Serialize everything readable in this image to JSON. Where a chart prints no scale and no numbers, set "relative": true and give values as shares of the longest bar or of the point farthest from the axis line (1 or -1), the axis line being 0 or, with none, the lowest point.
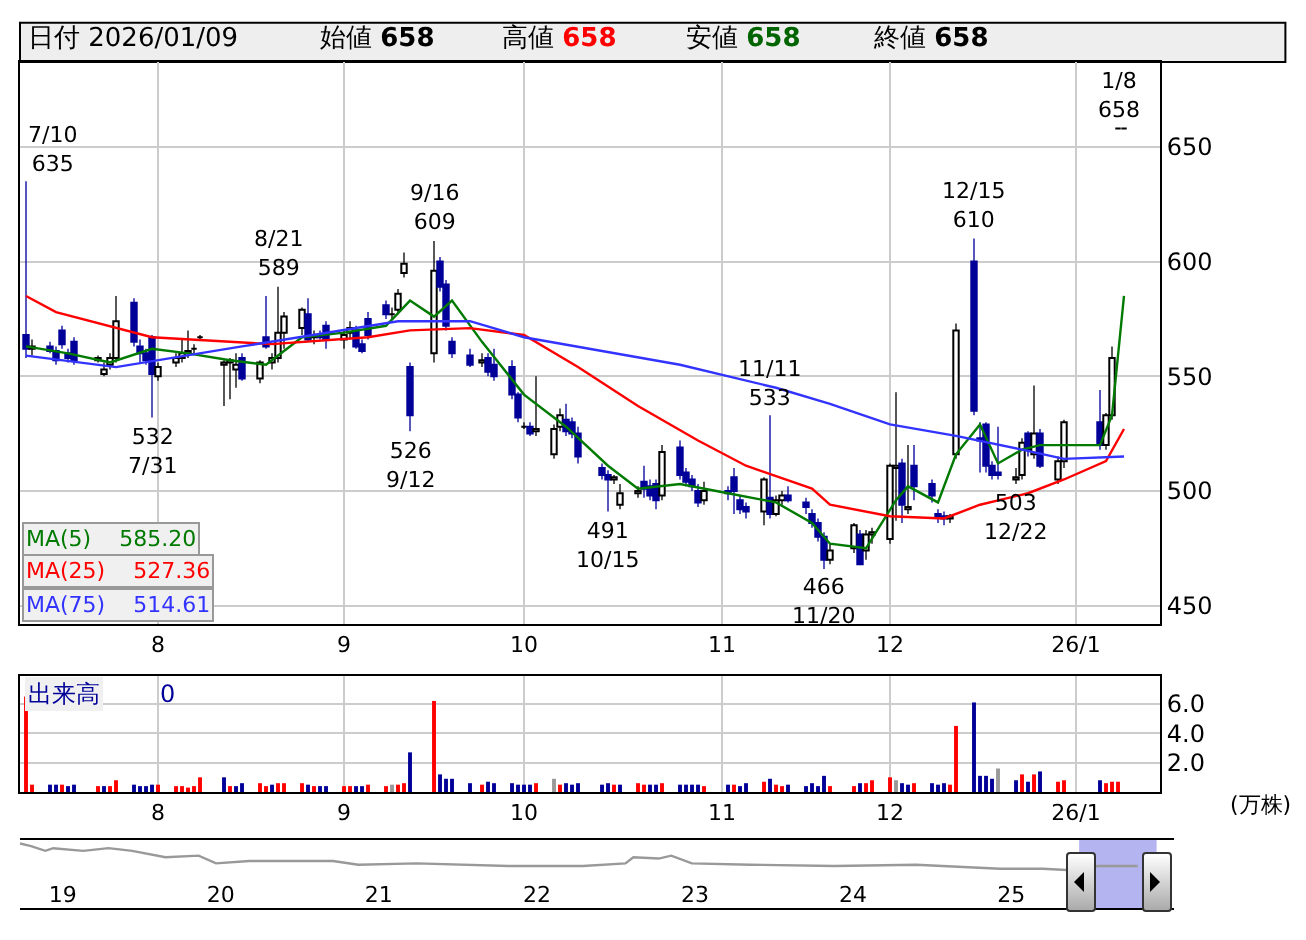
{
  "chart_data": [
    {
      "type": "candlestick",
      "xlim": [
        "2025-07-09",
        "2026-01-15"
      ],
      "ylim": [
        442,
        687
      ],
      "yticks": [
        450,
        500,
        550,
        600,
        650
      ],
      "xticks": [
        {
          "value": "2025-08-01",
          "label": "8"
        },
        {
          "value": "2025-09-01",
          "label": "9"
        },
        {
          "value": "2025-10-01",
          "label": "10"
        },
        {
          "value": "2025-11-03",
          "label": "11"
        },
        {
          "value": "2025-12-01",
          "label": "12"
        },
        {
          "value": "2026-01-01",
          "label": "26/1"
        }
      ],
      "grid": true,
      "legend": false,
      "x": [
        "2025-07-10",
        "2025-07-11",
        "2025-07-14",
        "2025-07-15",
        "2025-07-16",
        "2025-07-17",
        "2025-07-18",
        "2025-07-22",
        "2025-07-23",
        "2025-07-24",
        "2025-07-25",
        "2025-07-28",
        "2025-07-29",
        "2025-07-30",
        "2025-07-31",
        "2025-08-01",
        "2025-08-04",
        "2025-08-05",
        "2025-08-06",
        "2025-08-07",
        "2025-08-08",
        "2025-08-12",
        "2025-08-13",
        "2025-08-14",
        "2025-08-15",
        "2025-08-18",
        "2025-08-19",
        "2025-08-20",
        "2025-08-21",
        "2025-08-22",
        "2025-08-25",
        "2025-08-26",
        "2025-08-27",
        "2025-08-28",
        "2025-08-29",
        "2025-09-01",
        "2025-09-02",
        "2025-09-03",
        "2025-09-04",
        "2025-09-05",
        "2025-09-08",
        "2025-09-09",
        "2025-09-10",
        "2025-09-11",
        "2025-09-12",
        "2025-09-16",
        "2025-09-17",
        "2025-09-18",
        "2025-09-19",
        "2025-09-22",
        "2025-09-24",
        "2025-09-25",
        "2025-09-26",
        "2025-09-29",
        "2025-09-30",
        "2025-10-01",
        "2025-10-02",
        "2025-10-03",
        "2025-10-06",
        "2025-10-07",
        "2025-10-08",
        "2025-10-09",
        "2025-10-10",
        "2025-10-14",
        "2025-10-15",
        "2025-10-16",
        "2025-10-17",
        "2025-10-20",
        "2025-10-21",
        "2025-10-22",
        "2025-10-23",
        "2025-10-24",
        "2025-10-27",
        "2025-10-28",
        "2025-10-29",
        "2025-10-30",
        "2025-10-31",
        "2025-11-04",
        "2025-11-05",
        "2025-11-06",
        "2025-11-07",
        "2025-11-10",
        "2025-11-11",
        "2025-11-12",
        "2025-11-13",
        "2025-11-14",
        "2025-11-17",
        "2025-11-18",
        "2025-11-19",
        "2025-11-20",
        "2025-11-21",
        "2025-11-25",
        "2025-11-26",
        "2025-11-27",
        "2025-11-28",
        "2025-12-01",
        "2025-12-02",
        "2025-12-03",
        "2025-12-04",
        "2025-12-05",
        "2025-12-08",
        "2025-12-09",
        "2025-12-10",
        "2025-12-11",
        "2025-12-12",
        "2025-12-15",
        "2025-12-16",
        "2025-12-17",
        "2025-12-18",
        "2025-12-19",
        "2025-12-22",
        "2025-12-23",
        "2025-12-24",
        "2025-12-25",
        "2025-12-26",
        "2025-12-29",
        "2025-12-30",
        "2026-01-05",
        "2026-01-06",
        "2026-01-07",
        "2026-01-08",
        "2026-01-09"
      ],
      "ohlc": [
        [
          568,
          635,
          558,
          562
        ],
        [
          562,
          566,
          559,
          563
        ],
        [
          563,
          565,
          560,
          561
        ],
        [
          561,
          563,
          555,
          557
        ],
        [
          570,
          572,
          562,
          564
        ],
        [
          560,
          562,
          556,
          558
        ],
        [
          565,
          567,
          555,
          557
        ],
        [
          557,
          559,
          556,
          558
        ],
        [
          551,
          556,
          550,
          553
        ],
        [
          555,
          560,
          553,
          558
        ],
        [
          558,
          585,
          556,
          574
        ],
        [
          582,
          584,
          563,
          565
        ],
        [
          563,
          566,
          556,
          560
        ],
        [
          560,
          562,
          555,
          557
        ],
        [
          567,
          568,
          532,
          551
        ],
        [
          550,
          556,
          548,
          554
        ],
        [
          556,
          560,
          554,
          558
        ],
        [
          558,
          566,
          556,
          560
        ],
        [
          560,
          570,
          558,
          561
        ],
        [
          562,
          564,
          560,
          562
        ],
        [
          567,
          568,
          566,
          567
        ],
        [
          555,
          557,
          537,
          556
        ],
        [
          556,
          558,
          540,
          557
        ],
        [
          553,
          560,
          545,
          555
        ],
        [
          558,
          560,
          548,
          549
        ],
        [
          549,
          557,
          547,
          556
        ],
        [
          567,
          585,
          562,
          563
        ],
        [
          556,
          560,
          553,
          558
        ],
        [
          558,
          589,
          556,
          569
        ],
        [
          569,
          578,
          562,
          576
        ],
        [
          571,
          580,
          568,
          579
        ],
        [
          577,
          584,
          565,
          566
        ],
        [
          567,
          570,
          564,
          568
        ],
        [
          568,
          570,
          566,
          567
        ],
        [
          572,
          574,
          562,
          566
        ],
        [
          566,
          570,
          562,
          568
        ],
        [
          569,
          574,
          566,
          571
        ],
        [
          570,
          572,
          562,
          563
        ],
        [
          564,
          566,
          560,
          561
        ],
        [
          575,
          578,
          566,
          568
        ],
        [
          581,
          583,
          575,
          577
        ],
        [
          577,
          580,
          575,
          577
        ],
        [
          579,
          588,
          577,
          586
        ],
        [
          595,
          604,
          593,
          599
        ],
        [
          554,
          556,
          526,
          533
        ],
        [
          560,
          609,
          556,
          596
        ],
        [
          600,
          602,
          587,
          589
        ],
        [
          590,
          592,
          570,
          572
        ],
        [
          565,
          567,
          558,
          560
        ],
        [
          559,
          562,
          554,
          555
        ],
        [
          556,
          560,
          554,
          557
        ],
        [
          558,
          560,
          550,
          552
        ],
        [
          555,
          562,
          548,
          550
        ],
        [
          554,
          557,
          540,
          542
        ],
        [
          542,
          543,
          530,
          532
        ],
        [
          528,
          530,
          527,
          528
        ],
        [
          528,
          530,
          524,
          525
        ],
        [
          526,
          550,
          524,
          527
        ],
        [
          516,
          529,
          514,
          527
        ],
        [
          528,
          536,
          526,
          533
        ],
        [
          531,
          538,
          524,
          526
        ],
        [
          530,
          532,
          523,
          525
        ],
        [
          525,
          528,
          512,
          515
        ],
        [
          510,
          512,
          505,
          507
        ],
        [
          507,
          509,
          491,
          505
        ],
        [
          505,
          507,
          503,
          506
        ],
        [
          494,
          503,
          492,
          499
        ],
        [
          499,
          502,
          497,
          500
        ],
        [
          504,
          511,
          497,
          501
        ],
        [
          502,
          505,
          496,
          498
        ],
        [
          503,
          505,
          492,
          496
        ],
        [
          498,
          520,
          496,
          517
        ],
        [
          519,
          522,
          505,
          507
        ],
        [
          508,
          510,
          502,
          504
        ],
        [
          505,
          507,
          500,
          502
        ],
        [
          500,
          503,
          493,
          495
        ],
        [
          496,
          504,
          494,
          500
        ],
        [
          500,
          502,
          496,
          499
        ],
        [
          506,
          510,
          490,
          500
        ],
        [
          496,
          498,
          490,
          492
        ],
        [
          493,
          495,
          488,
          491
        ],
        [
          491,
          506,
          485,
          505
        ],
        [
          497,
          533,
          488,
          490
        ],
        [
          490,
          498,
          489,
          496
        ],
        [
          496,
          500,
          494,
          498
        ],
        [
          498,
          502,
          495,
          496
        ],
        [
          495,
          497,
          490,
          493
        ],
        [
          490,
          492,
          484,
          486
        ],
        [
          486,
          488,
          478,
          480
        ],
        [
          480,
          482,
          466,
          470
        ],
        [
          470,
          477,
          468,
          474
        ],
        [
          475,
          486,
          473,
          485
        ],
        [
          481,
          483,
          468,
          468
        ],
        [
          474,
          483,
          470,
          481
        ],
        [
          481,
          484,
          477,
          482
        ],
        [
          479,
          512,
          477,
          511
        ],
        [
          510,
          543,
          487,
          511
        ],
        [
          512,
          514,
          486,
          494
        ],
        [
          492,
          520,
          490,
          493
        ],
        [
          511,
          520,
          496,
          502
        ],
        [
          503,
          505,
          495,
          498
        ],
        [
          490,
          492,
          486,
          489
        ],
        [
          489,
          491,
          485,
          488
        ],
        [
          488,
          490,
          486,
          489
        ],
        [
          516,
          573,
          514,
          570
        ],
        [
          600,
          610,
          533,
          535
        ],
        [
          523,
          530,
          508,
          522
        ],
        [
          529,
          530,
          508,
          511
        ],
        [
          511,
          513,
          505,
          507
        ],
        [
          508,
          528,
          505,
          507
        ],
        [
          505,
          510,
          503,
          506
        ],
        [
          507,
          523,
          505,
          521
        ],
        [
          525,
          526,
          515,
          518
        ],
        [
          516,
          546,
          514,
          525
        ],
        [
          525,
          527,
          510,
          511
        ],
        [
          505,
          515,
          503,
          513
        ],
        [
          513,
          531,
          510,
          530
        ],
        [
          530,
          544,
          518,
          520
        ],
        [
          520,
          534,
          518,
          533
        ],
        [
          533,
          563,
          531,
          558
        ],
        [
          658,
          658,
          658,
          658
        ],
        [
          658,
          658,
          658,
          658
        ]
      ],
      "series": [
        {
          "name": "MA(5)",
          "type": "line",
          "color": "#007a00",
          "x": [
            "2025-07-10",
            "2025-07-17",
            "2025-07-24",
            "2025-07-31",
            "2025-08-06",
            "2025-08-13",
            "2025-08-19",
            "2025-08-25",
            "2025-09-01",
            "2025-09-08",
            "2025-09-12",
            "2025-09-16",
            "2025-09-19",
            "2025-09-24",
            "2025-10-01",
            "2025-10-08",
            "2025-10-15",
            "2025-10-20",
            "2025-10-27",
            "2025-11-04",
            "2025-11-12",
            "2025-11-18",
            "2025-11-21",
            "2025-11-27",
            "2025-12-02",
            "2025-12-04",
            "2025-12-09",
            "2025-12-12",
            "2025-12-16",
            "2025-12-19",
            "2025-12-23",
            "2025-12-26",
            "2026-01-05",
            "2026-01-07",
            "2026-01-09"
          ],
          "values": [
            563,
            560,
            556,
            562,
            560,
            557,
            555,
            567,
            569,
            572,
            583,
            576,
            583,
            565,
            542,
            528,
            511,
            501,
            503,
            499,
            495,
            486,
            477,
            475,
            496,
            502,
            495,
            516,
            529,
            512,
            518,
            520,
            520,
            533,
            585
          ]
        },
        {
          "name": "MA(25)",
          "type": "line",
          "color": "#ff0000",
          "x": [
            "2025-07-10",
            "2025-07-15",
            "2025-07-31",
            "2025-08-20",
            "2025-09-05",
            "2025-09-12",
            "2025-09-22",
            "2025-10-01",
            "2025-10-10",
            "2025-10-20",
            "2025-10-30",
            "2025-11-07",
            "2025-11-18",
            "2025-11-21",
            "2025-12-01",
            "2025-12-10",
            "2025-12-16",
            "2025-12-24",
            "2025-12-30",
            "2026-01-06",
            "2026-01-09"
          ],
          "values": [
            585,
            578,
            567,
            564,
            567,
            570,
            571,
            568,
            554,
            537,
            522,
            511,
            501,
            494,
            489,
            488,
            494,
            499,
            505,
            513,
            527
          ]
        },
        {
          "name": "MA(75)",
          "type": "line",
          "color": "#3333ff",
          "x": [
            "2025-07-10",
            "2025-07-25",
            "2025-08-15",
            "2025-09-10",
            "2025-09-22",
            "2025-10-01",
            "2025-10-27",
            "2025-11-12",
            "2025-11-21",
            "2025-12-01",
            "2025-12-12",
            "2025-12-23",
            "2025-12-30",
            "2026-01-09"
          ],
          "values": [
            559,
            554,
            563,
            574,
            574,
            567,
            555,
            545,
            538,
            529,
            524,
            518,
            514,
            515
          ]
        }
      ],
      "annotations": [
        "日付 2026/01/09",
        "始値 658",
        "高値 658",
        "安値 658",
        "終値 658",
        "585.20",
        "527.36",
        "514.61",
        {
          "text": "7/10\n635",
          "x": "2025-07-10",
          "y": 635
        },
        {
          "text": "532\n7/31",
          "x": "2025-07-31",
          "y": 532
        },
        {
          "text": "8/21\n589",
          "x": "2025-08-21",
          "y": 589
        },
        {
          "text": "526\n9/12",
          "x": "2025-09-12",
          "y": 526
        },
        {
          "text": "9/16\n609",
          "x": "2025-09-16",
          "y": 609
        },
        {
          "text": "491\n10/15",
          "x": "2025-10-15",
          "y": 491
        },
        {
          "text": "11/11\n533",
          "x": "2025-11-11",
          "y": 533
        },
        {
          "text": "466\n11/20",
          "x": "2025-11-20",
          "y": 466
        },
        {
          "text": "12/15\n610",
          "x": "2025-12-15",
          "y": 610
        },
        {
          "text": "503\n12/22",
          "x": "2025-12-22",
          "y": 503
        },
        {
          "text": "1/8\n658",
          "x": "2026-01-08",
          "y": 658
        }
      ]
    },
    {
      "type": "bar",
      "xlim": [
        "2025-07-09",
        "2026-01-15"
      ],
      "ylim": [
        0,
        7.9
      ],
      "yticks": [
        {
          "value": 2,
          "label": "2.0"
        },
        {
          "value": 4,
          "label": "4.0"
        },
        {
          "value": 6,
          "label": "6.0"
        }
      ],
      "xticks": [
        {
          "value": "2025-08-01",
          "label": "8"
        },
        {
          "value": "2025-09-01",
          "label": "9"
        },
        {
          "value": "2025-10-01",
          "label": "10"
        },
        {
          "value": "2025-11-03",
          "label": "11"
        },
        {
          "value": "2025-12-01",
          "label": "12"
        },
        {
          "value": "2026-01-01",
          "label": "26/1"
        }
      ],
      "grid": true,
      "legend": false,
      "ylabel": "(万株)",
      "annotations": [
        "出来高",
        "0"
      ],
      "x": [
        "2025-07-10",
        "2025-07-11",
        "2025-07-14",
        "2025-07-15",
        "2025-07-16",
        "2025-07-17",
        "2025-07-18",
        "2025-07-22",
        "2025-07-23",
        "2025-07-24",
        "2025-07-25",
        "2025-07-28",
        "2025-07-29",
        "2025-07-30",
        "2025-07-31",
        "2025-08-01",
        "2025-08-04",
        "2025-08-05",
        "2025-08-06",
        "2025-08-07",
        "2025-08-08",
        "2025-08-12",
        "2025-08-13",
        "2025-08-14",
        "2025-08-15",
        "2025-08-18",
        "2025-08-19",
        "2025-08-20",
        "2025-08-21",
        "2025-08-22",
        "2025-08-25",
        "2025-08-26",
        "2025-08-27",
        "2025-08-28",
        "2025-08-29",
        "2025-09-01",
        "2025-09-02",
        "2025-09-03",
        "2025-09-04",
        "2025-09-05",
        "2025-09-08",
        "2025-09-09",
        "2025-09-10",
        "2025-09-11",
        "2025-09-12",
        "2025-09-16",
        "2025-09-17",
        "2025-09-18",
        "2025-09-19",
        "2025-09-22",
        "2025-09-24",
        "2025-09-25",
        "2025-09-26",
        "2025-09-29",
        "2025-09-30",
        "2025-10-01",
        "2025-10-02",
        "2025-10-03",
        "2025-10-06",
        "2025-10-07",
        "2025-10-08",
        "2025-10-09",
        "2025-10-10",
        "2025-10-14",
        "2025-10-15",
        "2025-10-16",
        "2025-10-17",
        "2025-10-20",
        "2025-10-21",
        "2025-10-22",
        "2025-10-23",
        "2025-10-24",
        "2025-10-27",
        "2025-10-28",
        "2025-10-29",
        "2025-10-30",
        "2025-10-31",
        "2025-11-04",
        "2025-11-05",
        "2025-11-06",
        "2025-11-07",
        "2025-11-10",
        "2025-11-11",
        "2025-11-12",
        "2025-11-13",
        "2025-11-14",
        "2025-11-17",
        "2025-11-18",
        "2025-11-19",
        "2025-11-20",
        "2025-11-21",
        "2025-11-25",
        "2025-11-26",
        "2025-11-27",
        "2025-11-28",
        "2025-12-01",
        "2025-12-02",
        "2025-12-03",
        "2025-12-04",
        "2025-12-05",
        "2025-12-08",
        "2025-12-09",
        "2025-12-10",
        "2025-12-11",
        "2025-12-12",
        "2025-12-15",
        "2025-12-16",
        "2025-12-17",
        "2025-12-18",
        "2025-12-19",
        "2025-12-22",
        "2025-12-23",
        "2025-12-24",
        "2025-12-25",
        "2025-12-26",
        "2025-12-29",
        "2025-12-30",
        "2026-01-05",
        "2026-01-06",
        "2026-01-07",
        "2026-01-08",
        "2026-01-09"
      ],
      "values": [
        6.5,
        0.5,
        0.5,
        0.5,
        0.5,
        0.4,
        0.5,
        0.4,
        0.4,
        0.4,
        0.8,
        0.5,
        0.4,
        0.4,
        0.5,
        0.5,
        0.4,
        0.4,
        0.3,
        0.4,
        1,
        1,
        0.4,
        0.4,
        0.6,
        0.6,
        0.4,
        0.5,
        0.6,
        0.6,
        0.6,
        0.5,
        0.4,
        0.4,
        0.4,
        0.4,
        0.4,
        0.4,
        0.4,
        0.5,
        0.4,
        0.5,
        0.5,
        0.6,
        2.7,
        6.2,
        1.2,
        0.9,
        0.9,
        0.6,
        0.5,
        0.7,
        0.6,
        0.6,
        0.5,
        0.5,
        0.5,
        0.6,
        0.9,
        0.5,
        0.6,
        0.5,
        0.6,
        0.5,
        0.6,
        0.5,
        0.5,
        0.6,
        0.5,
        0.5,
        0.5,
        0.6,
        0.5,
        0.5,
        0.5,
        0.5,
        0.4,
        0.5,
        0.5,
        0.4,
        0.6,
        0.7,
        0.9,
        0.5,
        0.4,
        0.5,
        0.4,
        0.6,
        0.4,
        1.1,
        0.4,
        0.4,
        0.6,
        0.6,
        0.8,
        1,
        0.8,
        0.6,
        0.5,
        0.6,
        0.6,
        0.5,
        0.6,
        0.5,
        4.5,
        6.1,
        1.1,
        1.1,
        0.9,
        1.6,
        0.8,
        1.2,
        0.7,
        1.2,
        1.4,
        0.7,
        0.8,
        0.8,
        0.6,
        0.7,
        0.7,
        0
      ],
      "colors": [
        "#ff0000",
        "#ff0000",
        "#000099",
        "#000099",
        "#ff0000",
        "#000099",
        "#000099",
        "#ff0000",
        "#000099",
        "#ff0000",
        "#ff0000",
        "#000099",
        "#000099",
        "#000099",
        "#000099",
        "#ff0000",
        "#ff0000",
        "#ff0000",
        "#ff0000",
        "#ff0000",
        "#ff0000",
        "#000099",
        "#ff0000",
        "#000099",
        "#000099",
        "#ff0000",
        "#ff0000",
        "#000099",
        "#ff0000",
        "#ff0000",
        "#ff0000",
        "#000099",
        "#ff0000",
        "#000099",
        "#000099",
        "#ff0000",
        "#ff0000",
        "#000099",
        "#000099",
        "#ff0000",
        "#ff0000",
        "#999999",
        "#ff0000",
        "#ff0000",
        "#000099",
        "#ff0000",
        "#000099",
        "#000099",
        "#000099",
        "#000099",
        "#ff0000",
        "#000099",
        "#000099",
        "#000099",
        "#000099",
        "#000099",
        "#000099",
        "#ff0000",
        "#999999",
        "#ff0000",
        "#000099",
        "#000099",
        "#000099",
        "#000099",
        "#000099",
        "#ff0000",
        "#000099",
        "#ff0000",
        "#ff0000",
        "#000099",
        "#000099",
        "#ff0000",
        "#000099",
        "#000099",
        "#000099",
        "#000099",
        "#ff0000",
        "#000099",
        "#ff0000",
        "#000099",
        "#000099",
        "#ff0000",
        "#000099",
        "#ff0000",
        "#ff0000",
        "#000099",
        "#000099",
        "#000099",
        "#000099",
        "#000099",
        "#ff0000",
        "#ff0000",
        "#000099",
        "#ff0000",
        "#ff0000",
        "#ff0000",
        "#999999",
        "#000099",
        "#000099",
        "#ff0000",
        "#000099",
        "#000099",
        "#000099",
        "#ff0000",
        "#ff0000",
        "#000099",
        "#000099",
        "#000099",
        "#000099",
        "#999999",
        "#000099",
        "#ff0000",
        "#000099",
        "#ff0000",
        "#000099",
        "#ff0000",
        "#ff0000",
        "#000099",
        "#ff0000",
        "#ff0000",
        "#ff0000",
        "#999999"
      ]
    },
    {
      "type": "line",
      "relative": true,
      "tick_labels": "x",
      "color": "#999999",
      "xlim": [
        2018.73,
        2026.03
      ],
      "xticks": [
        {
          "value": 2019,
          "label": "19"
        },
        {
          "value": 2020,
          "label": "20"
        },
        {
          "value": 2021,
          "label": "21"
        },
        {
          "value": 2022,
          "label": "22"
        },
        {
          "value": 2023,
          "label": "23"
        },
        {
          "value": 2024,
          "label": "24"
        },
        {
          "value": 2025,
          "label": "25"
        }
      ],
      "x": [
        2018.73,
        2018.8,
        2018.89,
        2018.94,
        2019.13,
        2019.29,
        2019.44,
        2019.65,
        2019.86,
        2019.97,
        2020.18,
        2020.45,
        2020.71,
        2020.87,
        2021.24,
        2021.82,
        2022.29,
        2022.56,
        2022.61,
        2022.77,
        2022.85,
        2022.98,
        2023.35,
        2023.88,
        2024.4,
        2024.93,
        2025.2,
        2025.35,
        2025.55,
        2025.8
      ],
      "values": [
        1,
        0.9,
        0.72,
        0.82,
        0.72,
        0.82,
        0.72,
        0.48,
        0.54,
        0.25,
        0.34,
        0.34,
        0.34,
        0.2,
        0.25,
        0.15,
        0.15,
        0.25,
        0.48,
        0.43,
        0.54,
        0.25,
        0.2,
        0.15,
        0.2,
        0.05,
        0.05,
        0,
        0.15,
        0.15
      ],
      "bands": [
        {
          "axis": "x",
          "from": 2025.43,
          "to": 2025.92,
          "color": "#b4b4f0"
        }
      ]
    }
  ]
}
